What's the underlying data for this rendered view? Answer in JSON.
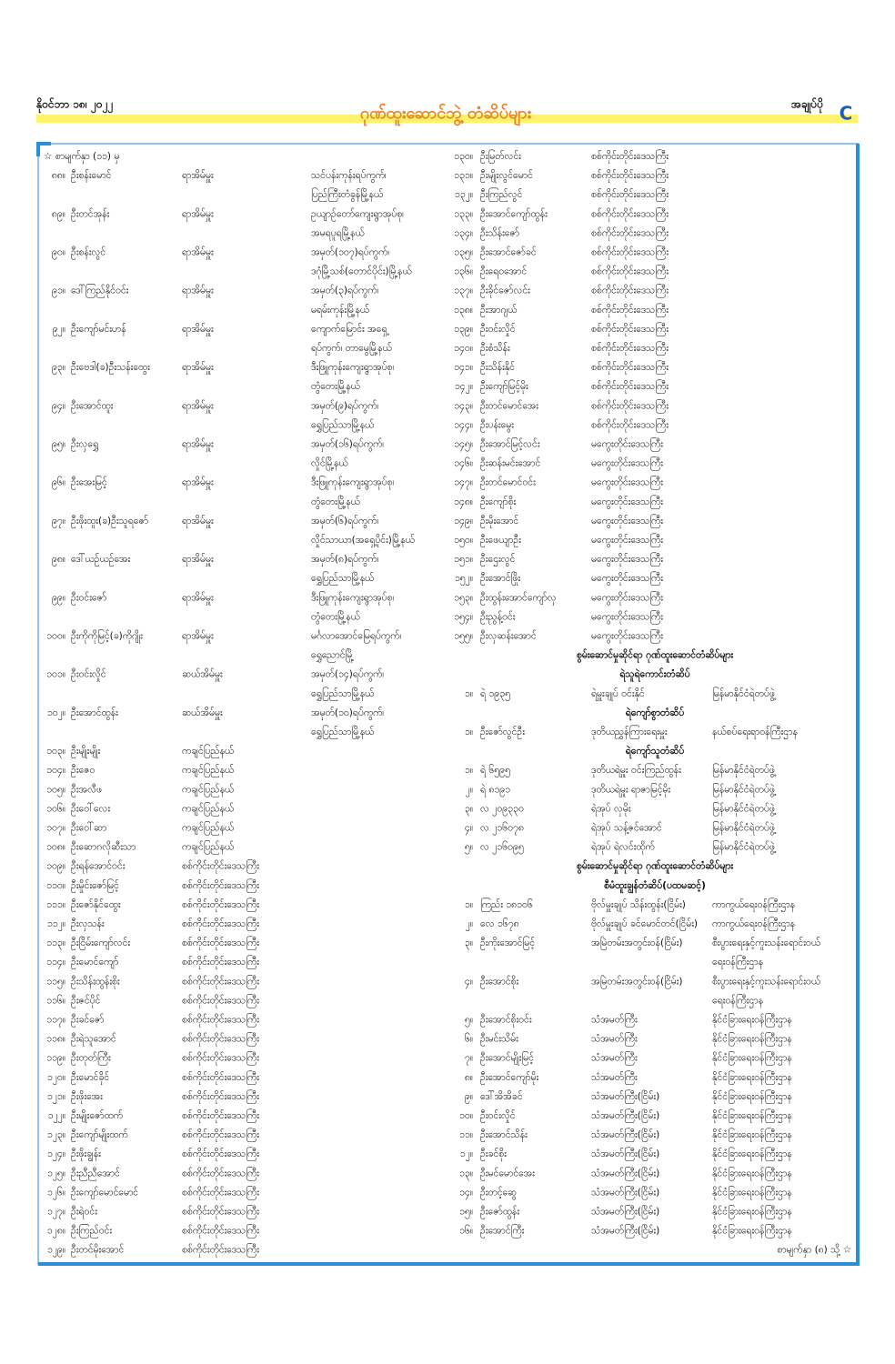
{
  "header": {
    "date": "နိုဝင်ဘာ ၁၈၊ ၂၀၂၂",
    "title": "ဂုဏ်ထူးဆောင်ဘွဲ့ တံဆိပ်များ",
    "section": "အချုပ်ပို",
    "letter": "C"
  },
  "continued_from": "☆ စာမျက်နှာ (၁၁) မှ",
  "left_entries": [
    {
      "no": "၈၈။",
      "name": "ဦးစန်းမောင်",
      "role": "ရာအိမ်မှူး",
      "address": [
        "သင်ပန်းကုန်းရပ်ကွက်၊",
        "ပြည်ကြီးတံခွန်မြို့နယ်"
      ]
    },
    {
      "no": "၈၉။",
      "name": "ဦးတင်အုန်း",
      "role": "ရာအိမ်မှူး",
      "address": [
        "ဥယျာဉ်တော်ကျေးရွာအုပ်စု၊",
        "အမရပူရမြို့နယ်"
      ]
    },
    {
      "no": "၉၀။",
      "name": "ဦးစန်းလွင်",
      "role": "ရာအိမ်မှူး",
      "address": [
        "အမှတ်(၁၀၇)ရပ်ကွက်၊",
        "ဒဂုံမြို့သစ်(တောင်ပိုင်း)မြို့နယ်"
      ]
    },
    {
      "no": "၉၁။",
      "name": "ဒေါ်ကြည်နိုင်ဝင်း",
      "role": "ရာအိမ်မှူး",
      "address": [
        "အမှတ်(၃)ရပ်ကွက်၊",
        "မရမ်းကုန်းမြို့နယ်"
      ]
    },
    {
      "no": "၉၂။",
      "name": "ဦးကျော်မင်းဟန်",
      "role": "ရာအိမ်မှူး",
      "address": [
        "ကျောက်မြောင်း အရှေ့",
        "ရပ်ကွက်၊ တာမွေမြို့နယ်"
      ]
    },
    {
      "no": "၉၃။",
      "name": "ဦးဗေဒါ(ခ)ဦးသန်းထွေး",
      "role": "ရာအိမ်မှူး",
      "address": [
        "ဒီးဖြူကုန်းကျေးရွာအုပ်စု၊",
        "တွံတေးမြို့နယ်"
      ]
    },
    {
      "no": "၉၄။",
      "name": "ဦးအောင်ထူး",
      "role": "ရာအိမ်မှူး",
      "address": [
        "အမှတ်(၉)ရပ်ကွက်၊",
        "ရွှေပြည်သာမြို့နယ်"
      ]
    },
    {
      "no": "၉၅။",
      "name": "ဦးလှရွှေ",
      "role": "ရာအိမ်မှူး",
      "address": [
        "အမှတ်(၁၆)ရပ်ကွက်၊",
        "လှိုင်မြို့နယ်"
      ]
    },
    {
      "no": "၉၆။",
      "name": "ဦးအေးမြင့်",
      "role": "ရာအိမ်မှူး",
      "address": [
        "ဒီးဖြူကုန်းကျေးရွာအုပ်စု၊",
        "တွံတေးမြို့နယ်"
      ]
    },
    {
      "no": "၉၇။",
      "name": "ဦးဖိုးထူး(ခ)ဦးသူရဇော်",
      "role": "ရာအိမ်မှူး",
      "address": [
        "အမှတ်(၆)ရပ်ကွက်၊",
        "လှိုင်သာယာ(အရှေ့ပိုင်း)မြို့နယ်"
      ]
    },
    {
      "no": "၉၈။",
      "name": "ဒေါ်ယဉ်ယဉ်အေး",
      "role": "ရာအိမ်မှူး",
      "address": [
        "အမှတ်(၈)ရပ်ကွက်၊",
        "ရွှေပြည်သာမြို့နယ်"
      ]
    },
    {
      "no": "၉၉။",
      "name": "ဦးဝင်းဇော်",
      "role": "ရာအိမ်မှူး",
      "address": [
        "ဒီးဖြူကုန်းကျေးရွာအုပ်စု၊",
        "တွံတေးမြို့နယ်"
      ]
    },
    {
      "no": "၁၀၀။",
      "name": "ဦးကိုကိုမြင့်(ခ)ကိုဂျိုး",
      "role": "ရာအိမ်မှူး",
      "address": [
        "မင်္ဂလာအောင်မြေရပ်ကွက်၊",
        "ရွှေညောင်မြို့"
      ]
    },
    {
      "no": "၁၀၁။",
      "name": "ဦးဝင်းလှိုင်",
      "role": "ဆယ်အိမ်မှူး",
      "address": [
        "အမှတ်(၁၄)ရပ်ကွက်၊",
        "ရွှေပြည်သာမြို့နယ်"
      ]
    },
    {
      "no": "၁၀၂။",
      "name": "ဦးအောင်ထွန်း",
      "role": "ဆယ်အိမ်မှူး",
      "address": [
        "အမှတ်(၁၀)ရပ်ကွက်၊",
        "ရွှေပြည်သာမြို့နယ်"
      ]
    },
    {
      "no": "၁၀၃။",
      "name": "ဦးမျိုးမျိုး",
      "role": "ကချင်ပြည်နယ်"
    },
    {
      "no": "၁၀၄။",
      "name": "ဦးဇေဝ",
      "role": "ကချင်ပြည်နယ်"
    },
    {
      "no": "၁၀၅။",
      "name": "ဦးအလီဖ",
      "role": "ကချင်ပြည်နယ်"
    },
    {
      "no": "၁၀၆။",
      "name": "ဦးဝေါ်လေး",
      "role": "ကချင်ပြည်နယ်"
    },
    {
      "no": "၁၀၇။",
      "name": "ဦးဝေါ်ဆာ",
      "role": "ကချင်ပြည်နယ်"
    },
    {
      "no": "၁၀၈။",
      "name": "ဦးဆောဂလိုဆီးသာ",
      "role": "ကချင်ပြည်နယ်"
    },
    {
      "no": "၁၀၉။",
      "name": "ဦးရန်အောင်ဝင်း",
      "role": "စစ်ကိုင်းတိုင်းဒေသကြီး"
    },
    {
      "no": "၁၁၀။",
      "name": "ဦးမှိုင်းဇော်မြင့်",
      "role": "စစ်ကိုင်းတိုင်းဒေသကြီး"
    },
    {
      "no": "၁၁၁။",
      "name": "ဦးဇော်နိုင်ထွေး",
      "role": "စစ်ကိုင်းတိုင်းဒေသကြီး"
    },
    {
      "no": "၁၁၂။",
      "name": "ဦးလှသန်း",
      "role": "စစ်ကိုင်းတိုင်းဒေသကြီး"
    },
    {
      "no": "၁၁၃။",
      "name": "ဦးငြိမ်းကျော်လင်း",
      "role": "စစ်ကိုင်းတိုင်းဒေသကြီး"
    },
    {
      "no": "၁၁၄။",
      "name": "ဦးမောင်ကျော်",
      "role": "စစ်ကိုင်းတိုင်းဒေသကြီး"
    },
    {
      "no": "၁၁၅။",
      "name": "ဦးသိန်းထွန်းစိုး",
      "role": "စစ်ကိုင်းတိုင်းဒေသကြီး"
    },
    {
      "no": "၁၁၆။",
      "name": "ဦးဇင်ပိုင်",
      "role": "စစ်ကိုင်းတိုင်းဒေသကြီး"
    },
    {
      "no": "၁၁၇။",
      "name": "ဦးခင်ဇော်",
      "role": "စစ်ကိုင်းတိုင်းဒေသကြီး"
    },
    {
      "no": "၁၁၈။",
      "name": "ဦးရဲသူအောင်",
      "role": "စစ်ကိုင်းတိုင်းဒေသကြီး"
    },
    {
      "no": "၁၁၉။",
      "name": "ဦးတုတ်ကြီး",
      "role": "စစ်ကိုင်းတိုင်းဒေသကြီး"
    },
    {
      "no": "၁၂၀။",
      "name": "ဦးမောင်ခိုင်",
      "role": "စစ်ကိုင်းတိုင်းဒေသကြီး"
    },
    {
      "no": "၁၂၁။",
      "name": "ဦးဖိုးအေး",
      "role": "စစ်ကိုင်းတိုင်းဒေသကြီး"
    },
    {
      "no": "၁၂၂။",
      "name": "ဦးမျိုးဇော်ထက်",
      "role": "စစ်ကိုင်းတိုင်းဒေသကြီး"
    },
    {
      "no": "၁၂၃။",
      "name": "ဦးကျော်မျိုးထက်",
      "role": "စစ်ကိုင်းတိုင်းဒေသကြီး"
    },
    {
      "no": "၁၂၄။",
      "name": "ဦးဖိုးချွန်း",
      "role": "စစ်ကိုင်းတိုင်းဒေသကြီး"
    },
    {
      "no": "၁၂၅။",
      "name": "ဦးညီညီအောင်",
      "role": "စစ်ကိုင်းတိုင်းဒေသကြီး"
    },
    {
      "no": "၁၂၆။",
      "name": "ဦးကျော်မောင်မောင်",
      "role": "စစ်ကိုင်းတိုင်းဒေသကြီး"
    },
    {
      "no": "၁၂၇။",
      "name": "ဦးရဲဝင်း",
      "role": "စစ်ကိုင်းတိုင်းဒေသကြီး"
    },
    {
      "no": "၁၂၈။",
      "name": "ဦးကြည်ဝင်း",
      "role": "စစ်ကိုင်းတိုင်းဒေသကြီး"
    },
    {
      "no": "၁၂၉။",
      "name": "ဦးတင်မိုးအောင်",
      "role": "စစ်ကိုင်းတိုင်းဒေသကြီး"
    }
  ],
  "right_entries": [
    {
      "no": "၁၃၀။",
      "name": "ဦးမြတ်လင်း",
      "role": "စစ်ကိုင်းတိုင်းဒေသကြီး"
    },
    {
      "no": "၁၃၁။",
      "name": "ဦးမျိုးလွင်မောင်",
      "role": "စစ်ကိုင်းတိုင်းဒေသကြီး"
    },
    {
      "no": "၁၃၂။",
      "name": "ဦးကြည်လွင်",
      "role": "စစ်ကိုင်းတိုင်းဒေသကြီး"
    },
    {
      "no": "၁၃၃။",
      "name": "ဦးအောင်ကျော်ထွန်း",
      "role": "စစ်ကိုင်းတိုင်းဒေသကြီး"
    },
    {
      "no": "၁၃၄။",
      "name": "ဦးသိန်းဇော်",
      "role": "စစ်ကိုင်းတိုင်းဒေသကြီး"
    },
    {
      "no": "၁၃၅။",
      "name": "ဦးအောင်ဇော်ခင်",
      "role": "စစ်ကိုင်းတိုင်းဒေသကြီး"
    },
    {
      "no": "၁၃၆။",
      "name": "ဦးရေဝအောင်",
      "role": "စစ်ကိုင်းတိုင်းဒေသကြီး"
    },
    {
      "no": "၁၃၇။",
      "name": "ဦးခိုင်ဇော်လင်း",
      "role": "စစ်ကိုင်းတိုင်းဒေသကြီး"
    },
    {
      "no": "၁၃၈။",
      "name": "ဦးအာဂျယ်",
      "role": "စစ်ကိုင်းတိုင်းဒေသကြီး"
    },
    {
      "no": "၁၃၉။",
      "name": "ဦးဝင်းလှိုင်",
      "role": "စစ်ကိုင်းတိုင်းဒေသကြီး"
    },
    {
      "no": "၁၄၀။",
      "name": "ဦးစံသိန်း",
      "role": "စစ်ကိုင်းတိုင်းဒေသကြီး"
    },
    {
      "no": "၁၄၁။",
      "name": "ဦးသိန်းနိုင်",
      "role": "စစ်ကိုင်းတိုင်းဒေသကြီး"
    },
    {
      "no": "၁၄၂။",
      "name": "ဦးကျော်မြင့်မိုး",
      "role": "စစ်ကိုင်းတိုင်းဒေသကြီး"
    },
    {
      "no": "၁၄၃။",
      "name": "ဦးတင်မောင်အေး",
      "role": "စစ်ကိုင်းတိုင်းဒေသကြီး"
    },
    {
      "no": "၁၄၄။",
      "name": "ဦးပန်းမွေး",
      "role": "စစ်ကိုင်းတိုင်းဒေသကြီး"
    },
    {
      "no": "၁၄၅။",
      "name": "ဦးအောင်မြင့်လင်း",
      "role": "မကွေးတိုင်းဒေသကြီး"
    },
    {
      "no": "၁၄၆။",
      "name": "ဦးဆန်းမင်းအောင်",
      "role": "မကွေးတိုင်းဒေသကြီး"
    },
    {
      "no": "၁၄၇။",
      "name": "ဦးတင်မောင်ဝင်း",
      "role": "မကွေးတိုင်းဒေသကြီး"
    },
    {
      "no": "၁၄၈။",
      "name": "ဦးကျော်စိုး",
      "role": "မကွေးတိုင်းဒေသကြီး"
    },
    {
      "no": "၁၄၉။",
      "name": "ဦးမိုးအောင်",
      "role": "မကွေးတိုင်းဒေသကြီး"
    },
    {
      "no": "၁၅၀။",
      "name": "ဦးဖေယျာဦး",
      "role": "မကွေးတိုင်းဒေသကြီး"
    },
    {
      "no": "၁၅၁။",
      "name": "ဦးဌေးလွင်",
      "role": "မကွေးတိုင်းဒေသကြီး"
    },
    {
      "no": "၁၅၂။",
      "name": "ဦးအောင်ဖြိုး",
      "role": "မကွေးတိုင်းဒေသကြီး"
    },
    {
      "no": "၁၅၃။",
      "name": "ဦးထွန်းအောင်ကျော်လှ",
      "role": "မကွေးတိုင်းဒေသကြီး"
    },
    {
      "no": "၁၅၄။",
      "name": "ဦးညွန့်ဝင်း",
      "role": "မကွေးတိုင်းဒေသကြီး"
    },
    {
      "no": "၁၅၅။",
      "name": "ဦးလှဆန်းအောင်",
      "role": "မကွေးတိုင်းဒေသကြီး"
    },
    {
      "heading": "စွမ်းဆောင်မှုဆိုင်ရာ ဂုဏ်ထူးဆောင်တံဆိပ်များ"
    },
    {
      "subheading": "ရဲသူရဲကောင်းတံဆိပ်"
    },
    {
      "no": "၁။",
      "name": "ရဲ ၁၉၃၅",
      "role": "ရဲမှူးချုပ် ဝင်းနိုင်",
      "org": "မြန်မာနိုင်ငံရဲတပ်ဖွဲ့"
    },
    {
      "subheading": "ရဲကျော်စွာတံဆိပ်"
    },
    {
      "no": "၁။",
      "name": "ဦးဇော်လွင်ဦး",
      "role": "ဒုတိယညွှန်ကြားရေးမှူး",
      "org": "နယ်စပ်ရေးရာဝန်ကြီးဌာန"
    },
    {
      "subheading": "ရဲကျော်သူတံဆိပ်"
    },
    {
      "no": "၁။",
      "name": "ရဲ ၆၅၉၅",
      "role": "ဒုတိယရဲမှူး ဝင်းကြည်ထွန်း",
      "org": "မြန်မာနိုင်ငံရဲတပ်ဖွဲ့"
    },
    {
      "no": "၂။",
      "name": "ရဲ ၈၁၉၁",
      "role": "ဒုတိယရဲမှူး ရာဇာမြင့်မိုး",
      "org": "မြန်မာနိုင်ငံရဲတပ်ဖွဲ့"
    },
    {
      "no": "၃။",
      "name": "လ ၂၀၉၃၃၀",
      "role": "ရဲအုပ် လှမိုး",
      "org": "မြန်မာနိုင်ငံရဲတပ်ဖွဲ့"
    },
    {
      "no": "၄။",
      "name": "လ ၂၁၆၀၇၈",
      "role": "ရဲအုပ် သန့်ဇင်အောင်",
      "org": "မြန်မာနိုင်ငံရဲတပ်ဖွဲ့"
    },
    {
      "no": "၅။",
      "name": "လ ၂၁၆၀၉၅",
      "role": "ရဲအုပ် ရဲလင်းထိုက်",
      "org": "မြန်မာနိုင်ငံရဲတပ်ဖွဲ့"
    },
    {
      "heading": "စွမ်းဆောင်မှုဆိုင်ရာ ဂုဏ်ထူးဆောင်တံဆိပ်များ"
    },
    {
      "subheading": "စီမံထူးချွန်တံဆိပ်(ပထမဆင့်)"
    },
    {
      "no": "၁။",
      "name": "ကြည်း ၁၈၁၀၆",
      "role": "ဗိုလ်မှူးချုပ် သိန်းထွန်း(ငြိမ်း)",
      "org": "ကာကွယ်ရေးဝန်ကြီးဌာန"
    },
    {
      "no": "၂။",
      "name": "လေ ၁၆၇၈",
      "role": "ဗိုလ်မှူးချုပ် ခင်မောင်တင်(ငြိမ်း)",
      "org": "ကာကွယ်ရေးဝန်ကြီးဌာန"
    },
    {
      "no": "၃။",
      "name": "ဦးကိုးအောင်မြင့်",
      "role": "အမြဲတမ်းအတွင်းဝန်(ငြိမ်း)",
      "org": [
        "စီးပွားရေးနှင့်ကူးသန်းရောင်းဝယ်",
        "ရေးဝန်ကြီးဌာန"
      ]
    },
    {
      "no": "၄။",
      "name": "ဦးအောင်စိုး",
      "role": "အမြဲတမ်းအတွင်းဝန်(ငြိမ်း)",
      "org": [
        "စီးပွားရေးနှင့်ကူးသန်းရောင်းဝယ်",
        "ရေးဝန်ကြီးဌာန"
      ]
    },
    {
      "no": "၅။",
      "name": "ဦးအောင်စိုးဝင်း",
      "role": "သံအမတ်ကြီး",
      "org": "နိုင်ငံခြားရေးဝန်ကြီးဌာန"
    },
    {
      "no": "၆။",
      "name": "ဦးမင်းသိမ်း",
      "role": "သံအမတ်ကြီး",
      "org": "နိုင်ငံခြားရေးဝန်ကြီးဌာန"
    },
    {
      "no": "၇။",
      "name": "ဦးအောင်မျိုးမြင့်",
      "role": "သံအမတ်ကြီး",
      "org": "နိုင်ငံခြားရေးဝန်ကြီးဌာန"
    },
    {
      "no": "၈။",
      "name": "ဦးအောင်ကျော်မိုး",
      "role": "သံအမတ်ကြီး",
      "org": "နိုင်ငံခြားရေးဝန်ကြီးဌာန"
    },
    {
      "no": "၉။",
      "name": "ဒေါ်အိအိခင်",
      "role": "သံအမတ်ကြီး(ငြိမ်း)",
      "org": "နိုင်ငံခြားရေးဝန်ကြီးဌာန"
    },
    {
      "no": "၁၀။",
      "name": "ဦးဝင်းလှိုင်",
      "role": "သံအမတ်ကြီး(ငြိမ်း)",
      "org": "နိုင်ငံခြားရေးဝန်ကြီးဌာန"
    },
    {
      "no": "၁၁။",
      "name": "ဦးအောင်သိန်း",
      "role": "သံအမတ်ကြီး(ငြိမ်း)",
      "org": "နိုင်ငံခြားရေးဝန်ကြီးဌာန"
    },
    {
      "no": "၁၂။",
      "name": "ဦးခင်စိုး",
      "role": "သံအမတ်ကြီး(ငြိမ်း)",
      "org": "နိုင်ငံခြားရေးဝန်ကြီးဌာန"
    },
    {
      "no": "၁၃။",
      "name": "ဦးမင်မောင်အေး",
      "role": "သံအမတ်ကြီး(ငြိမ်း)",
      "org": "နိုင်ငံခြားရေးဝန်ကြီးဌာန"
    },
    {
      "no": "၁၄။",
      "name": "ဦးတင့်ဆွေ",
      "role": "သံအမတ်ကြီး(ငြိမ်း)",
      "org": "နိုင်ငံခြားရေးဝန်ကြီးဌာန"
    },
    {
      "no": "၁၅။",
      "name": "ဦးဇော်ထွန်း",
      "role": "သံအမတ်ကြီး(ငြိမ်း)",
      "org": "နိုင်ငံခြားရေးဝန်ကြီးဌာန"
    },
    {
      "no": "၁၆။",
      "name": "ဦးအောင်ကြီး",
      "role": "သံအမတ်ကြီး(ငြိမ်း)",
      "org": "နိုင်ငံခြားရေးဝန်ကြီးဌာန"
    }
  ],
  "continued_to": "စာမျက်နှာ (၈) သို့ ☆"
}
